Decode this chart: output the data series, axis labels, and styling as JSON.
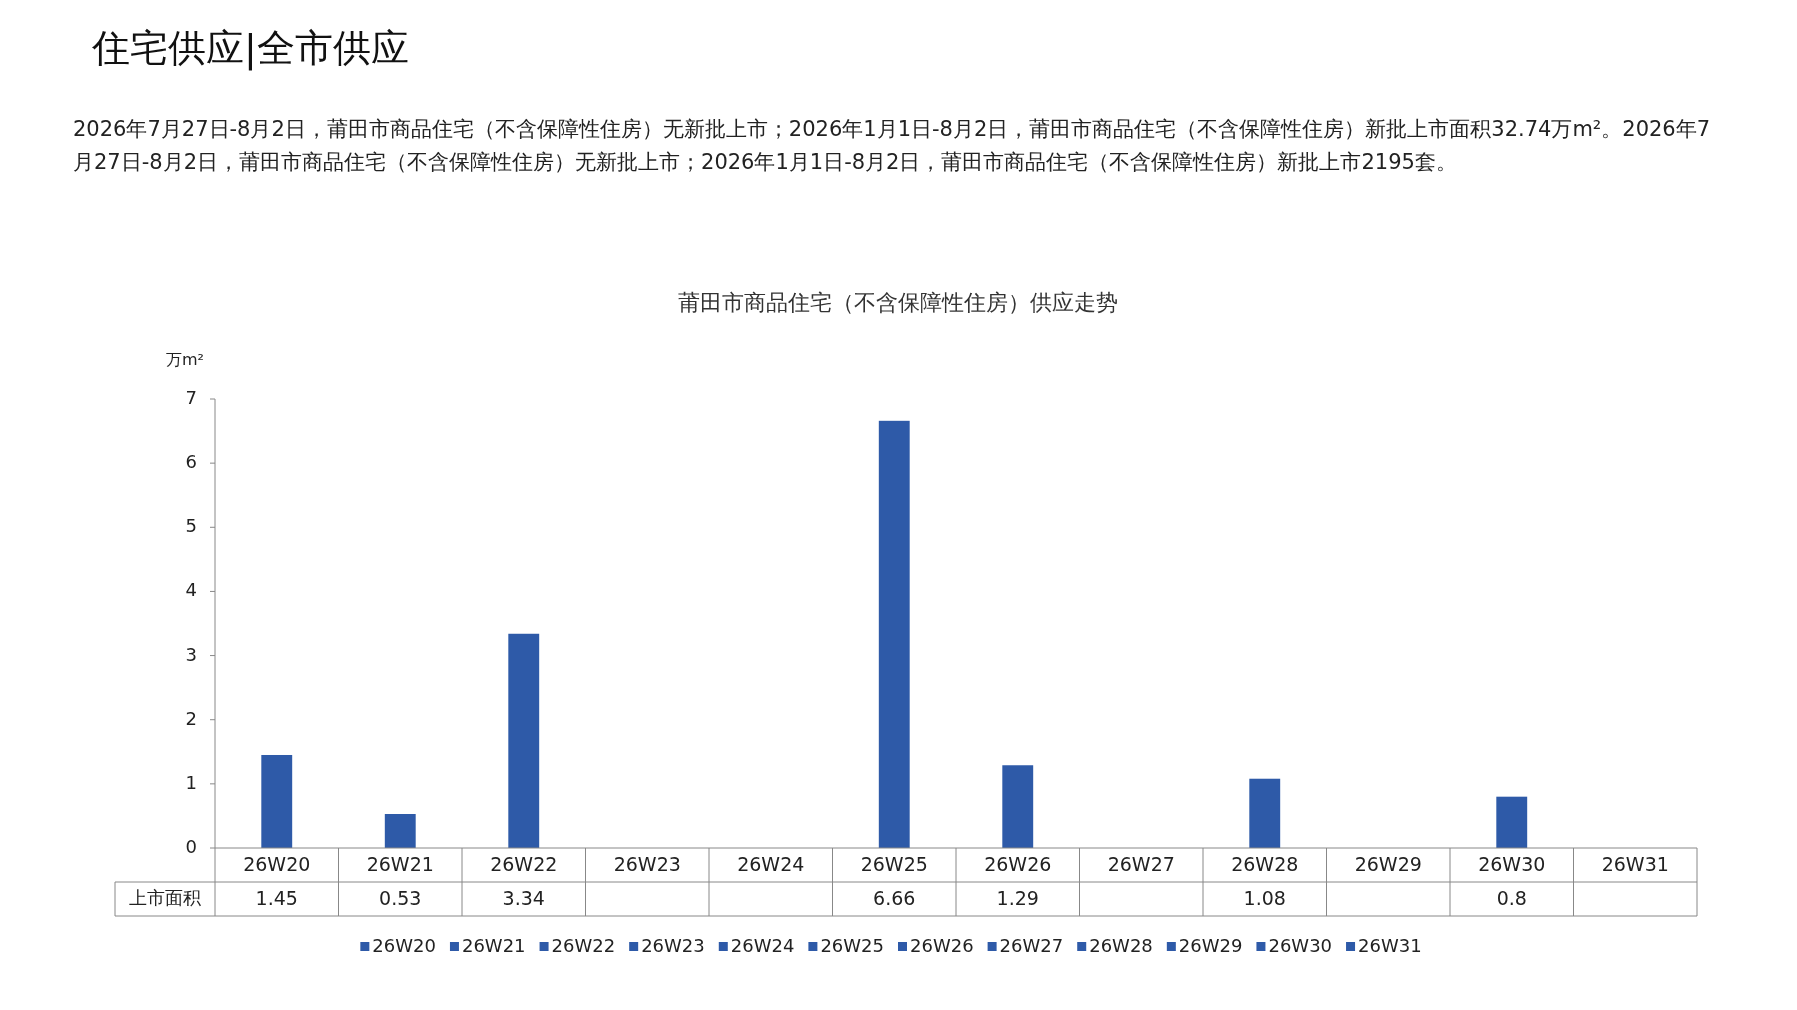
{
  "chart_data": {
    "type": "bar",
    "title": "莆田市商品住宅（不含保障性住房）供应走势",
    "annotations": [
      "住宅供应|全市供应",
      "2026年7月27日-8月2日，莆田市商品住宅（不含保障性住房）无新批上市；2026年1月1日-8月2日，莆田市商品住宅（不含保障性住房）新批上市面积32.74万m²。2026年7月27日-8月2日，莆田市商品住宅（不含保障性住房）无新批上市；2026年1月1日-8月2日，莆田市商品住宅（不含保障性住房）新批上市2195套。"
    ],
    "ylabel": "万m²",
    "categories": [
      "26W20",
      "26W21",
      "26W22",
      "26W23",
      "26W24",
      "26W25",
      "26W26",
      "26W27",
      "26W28",
      "26W29",
      "26W30",
      "26W31"
    ],
    "series": [
      {
        "name": "上市面积",
        "color": "#2e5aa8",
        "values": [
          1.45,
          0.53,
          3.34,
          null,
          null,
          6.66,
          1.29,
          null,
          1.08,
          null,
          0.8,
          null
        ]
      }
    ],
    "ylim": [
      0,
      7
    ],
    "yticks": [
      0,
      1,
      2,
      3,
      4,
      5,
      6,
      7
    ],
    "data_labels": true,
    "legend": "bottom"
  }
}
